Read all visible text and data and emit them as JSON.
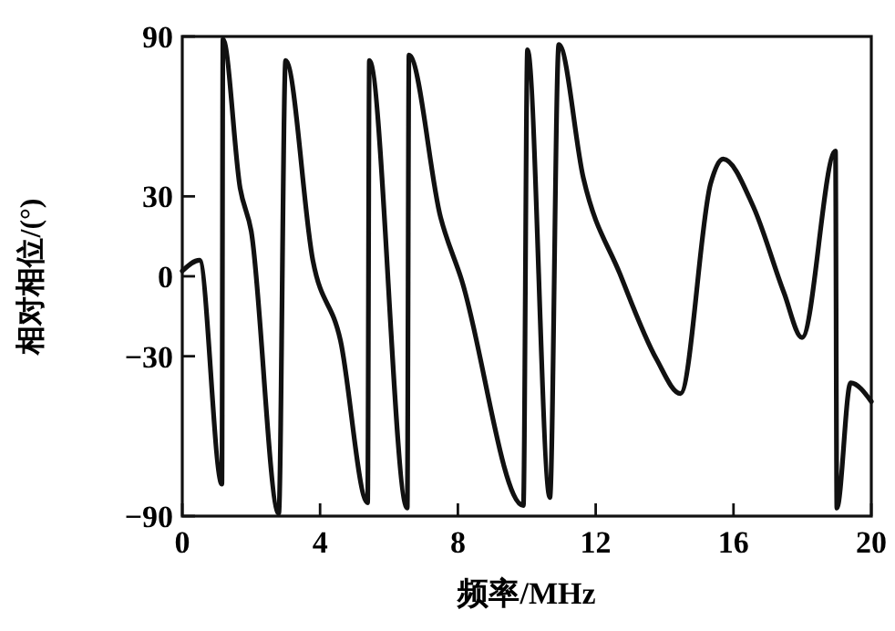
{
  "chart_data": {
    "type": "line",
    "xlabel": "频率/MHz",
    "ylabel": "相对相位/(°)",
    "xlim": [
      0,
      20
    ],
    "xticks": [
      0,
      4,
      8,
      12,
      16,
      20
    ],
    "ylim": [
      -90,
      90
    ],
    "yticks": [
      {
        "value": -90,
        "label": "−90"
      },
      {
        "value": -30,
        "label": "−30"
      },
      0,
      30,
      90
    ],
    "marker": "none",
    "line_style": "solid",
    "series": [
      {
        "color": "#111111",
        "x": [
          0,
          0.5,
          1.15,
          1.18,
          1.68,
          2.0,
          2.8,
          3.0,
          3.79,
          4.59,
          5.38,
          5.43,
          6.53,
          6.58,
          7.5,
          8.1,
          9.9,
          10.02,
          10.67,
          10.93,
          11.64,
          12.7,
          13.76,
          14.46,
          15.34,
          15.7,
          16.58,
          17.46,
          17.99,
          18.96,
          19.0,
          19.4,
          20
        ],
        "values": [
          2,
          6,
          -78,
          89,
          33,
          17,
          -89,
          81,
          6,
          -24,
          -85,
          81,
          -87,
          83,
          22,
          -1,
          -86,
          85,
          -83,
          87,
          37,
          1,
          -31,
          -44,
          35,
          44,
          26,
          -6,
          -23,
          47,
          -87,
          -40,
          -47
        ]
      }
    ]
  }
}
